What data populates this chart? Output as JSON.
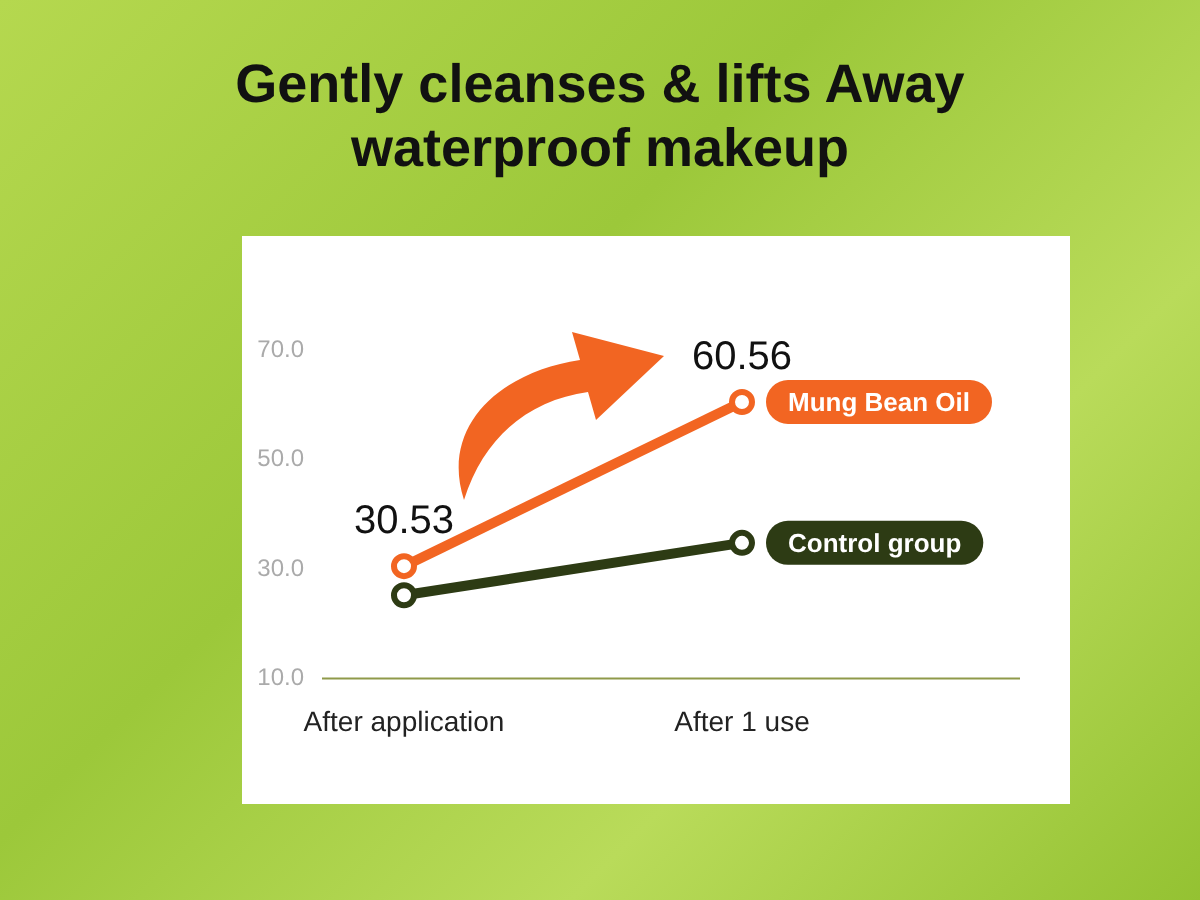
{
  "chart_data": {
    "type": "line",
    "title": "Gently cleanses & lifts Away waterproof makeup",
    "categories": [
      "After application",
      "After 1 use"
    ],
    "series": [
      {
        "name": "Mung Bean Oil",
        "color": "#f26522",
        "values": [
          30.53,
          60.56
        ],
        "value_labels": [
          "30.53",
          "60.56"
        ]
      },
      {
        "name": "Control group",
        "color": "#2d3b14",
        "values": [
          25.2,
          34.8
        ]
      }
    ],
    "ylim": [
      10,
      70
    ],
    "yticks": [
      {
        "value": 10,
        "label": "10.0"
      },
      {
        "value": 30,
        "label": "30.0"
      },
      {
        "value": 50,
        "label": "50.0"
      },
      {
        "value": 70,
        "label": "70.0"
      }
    ],
    "grid": false,
    "legend": false,
    "marker": "circle",
    "line_style": "solid"
  }
}
